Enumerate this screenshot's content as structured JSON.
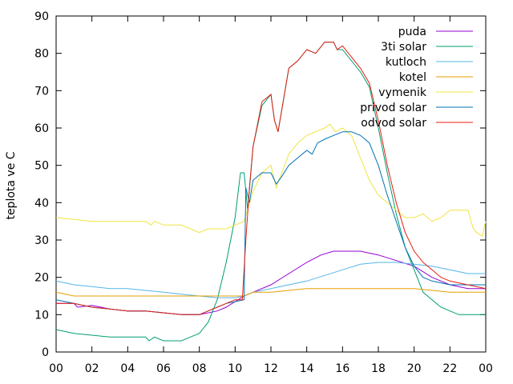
{
  "chart_data": {
    "type": "line",
    "ylabel": "teplota ve C",
    "xlabel": "",
    "ylim": [
      0,
      90
    ],
    "xlim": [
      0,
      24
    ],
    "x_tick_labels": [
      "00",
      "02",
      "04",
      "06",
      "08",
      "10",
      "12",
      "14",
      "16",
      "18",
      "20",
      "22",
      "00"
    ],
    "y_tick_labels": [
      "0",
      "10",
      "20",
      "30",
      "40",
      "50",
      "60",
      "70",
      "80",
      "90"
    ],
    "legend_position": "top-right",
    "grid": false,
    "series": [
      {
        "name": "puda",
        "color": "#9400d3",
        "points": [
          [
            0,
            13
          ],
          [
            1,
            13
          ],
          [
            1.2,
            12
          ],
          [
            2,
            12.5
          ],
          [
            3,
            11.5
          ],
          [
            4,
            11
          ],
          [
            5,
            11
          ],
          [
            6,
            10.5
          ],
          [
            7,
            10
          ],
          [
            8,
            10
          ],
          [
            9,
            11
          ],
          [
            9.5,
            12
          ],
          [
            10,
            13.5
          ],
          [
            10.5,
            15
          ],
          [
            11,
            16
          ],
          [
            12,
            18
          ],
          [
            13,
            21
          ],
          [
            14,
            24
          ],
          [
            14.8,
            26
          ],
          [
            15.5,
            27
          ],
          [
            17,
            27
          ],
          [
            18,
            26
          ],
          [
            19,
            24.5
          ],
          [
            20,
            23
          ],
          [
            21,
            20
          ],
          [
            22,
            18
          ],
          [
            23,
            17
          ],
          [
            24,
            17
          ]
        ]
      },
      {
        "name": "3ti solar",
        "color": "#009e73",
        "points": [
          [
            0,
            6
          ],
          [
            1,
            5
          ],
          [
            2,
            4.5
          ],
          [
            3,
            4
          ],
          [
            4,
            4
          ],
          [
            5,
            4
          ],
          [
            5.2,
            3
          ],
          [
            5.5,
            4
          ],
          [
            6,
            3
          ],
          [
            7,
            3
          ],
          [
            7.5,
            4
          ],
          [
            8,
            5
          ],
          [
            8.5,
            8
          ],
          [
            9,
            14
          ],
          [
            9.5,
            24
          ],
          [
            10,
            36
          ],
          [
            10.3,
            48
          ],
          [
            10.5,
            48
          ],
          [
            10.7,
            38
          ],
          [
            11,
            55
          ],
          [
            11.5,
            66
          ],
          [
            12,
            69
          ],
          [
            12.2,
            62
          ],
          [
            12.4,
            59
          ],
          [
            13,
            76
          ],
          [
            13.5,
            78
          ],
          [
            14,
            81
          ],
          [
            14.5,
            80
          ],
          [
            15,
            83
          ],
          [
            15.5,
            83
          ],
          [
            15.7,
            81
          ],
          [
            16,
            81
          ],
          [
            17,
            75
          ],
          [
            17.5,
            71
          ],
          [
            18,
            60
          ],
          [
            18.5,
            48
          ],
          [
            19,
            37
          ],
          [
            19.5,
            28
          ],
          [
            20,
            22
          ],
          [
            20.5,
            16
          ],
          [
            21,
            14
          ],
          [
            21.5,
            12
          ],
          [
            22,
            11
          ],
          [
            22.5,
            10
          ],
          [
            24,
            10
          ]
        ]
      },
      {
        "name": "kutloch",
        "color": "#56b4e9",
        "points": [
          [
            0,
            19
          ],
          [
            1,
            18
          ],
          [
            2,
            17.5
          ],
          [
            3,
            17
          ],
          [
            4,
            17
          ],
          [
            5,
            16.5
          ],
          [
            6,
            16
          ],
          [
            7,
            15.5
          ],
          [
            8,
            15
          ],
          [
            9,
            14.5
          ],
          [
            10,
            14.5
          ],
          [
            10.5,
            15
          ],
          [
            11,
            16
          ],
          [
            12,
            17
          ],
          [
            13,
            18
          ],
          [
            14,
            19
          ],
          [
            15,
            20.5
          ],
          [
            16,
            22
          ],
          [
            17,
            23.5
          ],
          [
            18,
            24
          ],
          [
            19,
            24
          ],
          [
            20,
            23.5
          ],
          [
            21,
            23
          ],
          [
            22,
            22
          ],
          [
            23,
            21
          ],
          [
            24,
            21
          ]
        ]
      },
      {
        "name": "kotel",
        "color": "#e69f00",
        "points": [
          [
            0,
            16
          ],
          [
            1,
            15
          ],
          [
            5,
            15
          ],
          [
            10,
            15
          ],
          [
            10.5,
            15
          ],
          [
            11,
            16
          ],
          [
            12,
            16
          ],
          [
            13,
            16.5
          ],
          [
            14,
            17
          ],
          [
            16,
            17
          ],
          [
            20,
            17
          ],
          [
            22,
            16
          ],
          [
            24,
            16
          ]
        ]
      },
      {
        "name": "vymenik",
        "color": "#f0e442",
        "points": [
          [
            0,
            36
          ],
          [
            1,
            35.5
          ],
          [
            2,
            35
          ],
          [
            4,
            35
          ],
          [
            5,
            35
          ],
          [
            5.3,
            34
          ],
          [
            5.5,
            35
          ],
          [
            6,
            34
          ],
          [
            7,
            34
          ],
          [
            7.5,
            33
          ],
          [
            8,
            32
          ],
          [
            8.5,
            33
          ],
          [
            9,
            33
          ],
          [
            9.5,
            33
          ],
          [
            10,
            34
          ],
          [
            10.5,
            35
          ],
          [
            11,
            43
          ],
          [
            11.5,
            48
          ],
          [
            12,
            50
          ],
          [
            12.3,
            44
          ],
          [
            12.6,
            48
          ],
          [
            13,
            53
          ],
          [
            13.5,
            56
          ],
          [
            14,
            58
          ],
          [
            14.5,
            59
          ],
          [
            15,
            60
          ],
          [
            15.3,
            61
          ],
          [
            15.6,
            59
          ],
          [
            16,
            60
          ],
          [
            16.5,
            58
          ],
          [
            17,
            52
          ],
          [
            17.5,
            46
          ],
          [
            18,
            42
          ],
          [
            18.5,
            40
          ],
          [
            19,
            38
          ],
          [
            19.5,
            36
          ],
          [
            20,
            36
          ],
          [
            20.5,
            37
          ],
          [
            21,
            35
          ],
          [
            21.5,
            36
          ],
          [
            22,
            38
          ],
          [
            23,
            38
          ],
          [
            23.3,
            33
          ],
          [
            23.5,
            32
          ],
          [
            23.8,
            31
          ],
          [
            24,
            35
          ]
        ]
      },
      {
        "name": "privod solar",
        "color": "#0072b2",
        "points": [
          [
            0,
            14
          ],
          [
            1,
            13
          ],
          [
            2,
            12
          ],
          [
            3,
            11.5
          ],
          [
            4,
            11
          ],
          [
            5,
            11
          ],
          [
            6,
            10.5
          ],
          [
            7,
            10
          ],
          [
            8,
            10
          ],
          [
            8.5,
            11
          ],
          [
            9,
            12
          ],
          [
            9.5,
            13
          ],
          [
            10,
            13.5
          ],
          [
            10.5,
            14
          ],
          [
            10.6,
            44
          ],
          [
            10.8,
            40
          ],
          [
            11,
            46
          ],
          [
            11.5,
            48
          ],
          [
            12,
            48
          ],
          [
            12.3,
            45
          ],
          [
            12.6,
            47
          ],
          [
            13,
            50
          ],
          [
            13.5,
            52
          ],
          [
            14,
            54
          ],
          [
            14.3,
            53
          ],
          [
            14.6,
            56
          ],
          [
            15,
            57
          ],
          [
            15.5,
            58
          ],
          [
            16,
            59
          ],
          [
            16.5,
            59
          ],
          [
            17,
            58
          ],
          [
            17.5,
            56
          ],
          [
            18,
            50
          ],
          [
            18.5,
            42
          ],
          [
            19,
            35
          ],
          [
            19.5,
            28
          ],
          [
            20,
            23
          ],
          [
            20.5,
            20
          ],
          [
            21,
            19
          ],
          [
            22,
            18
          ],
          [
            23,
            18
          ],
          [
            24,
            18
          ]
        ]
      },
      {
        "name": "odvod solar",
        "color": "#e51e10",
        "points": [
          [
            0,
            13
          ],
          [
            1,
            13
          ],
          [
            2,
            12
          ],
          [
            3,
            11.5
          ],
          [
            4,
            11
          ],
          [
            5,
            11
          ],
          [
            6,
            10.5
          ],
          [
            7,
            10
          ],
          [
            8,
            10
          ],
          [
            8.5,
            11
          ],
          [
            9,
            12
          ],
          [
            9.5,
            13
          ],
          [
            10,
            14
          ],
          [
            10.4,
            14
          ],
          [
            10.6,
            30
          ],
          [
            10.8,
            44
          ],
          [
            11,
            55
          ],
          [
            11.5,
            67
          ],
          [
            12,
            69
          ],
          [
            12.2,
            62
          ],
          [
            12.4,
            59
          ],
          [
            13,
            76
          ],
          [
            13.5,
            78
          ],
          [
            14,
            81
          ],
          [
            14.5,
            80
          ],
          [
            15,
            83
          ],
          [
            15.5,
            83
          ],
          [
            15.7,
            81
          ],
          [
            16,
            82
          ],
          [
            17,
            76
          ],
          [
            17.5,
            72
          ],
          [
            18,
            62
          ],
          [
            18.5,
            50
          ],
          [
            19,
            40
          ],
          [
            19.5,
            32
          ],
          [
            20,
            27
          ],
          [
            20.5,
            24
          ],
          [
            21,
            22
          ],
          [
            21.5,
            20
          ],
          [
            22,
            19
          ],
          [
            23,
            18
          ],
          [
            24,
            17
          ]
        ]
      }
    ]
  }
}
